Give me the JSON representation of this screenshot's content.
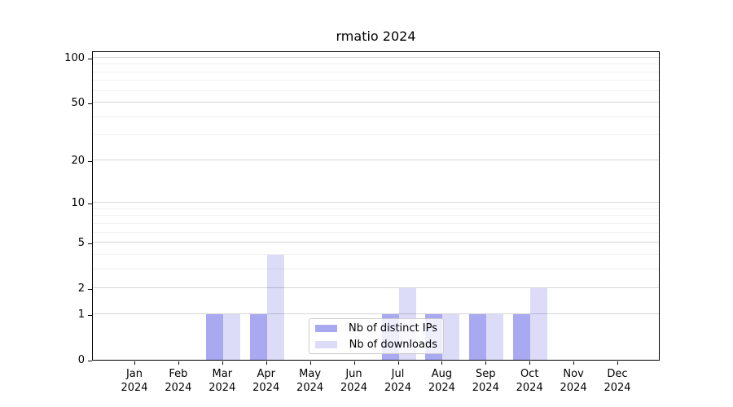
{
  "chart_data": {
    "type": "bar",
    "title": "rmatio 2024",
    "categories": [
      "Jan",
      "Feb",
      "Mar",
      "Apr",
      "May",
      "Jun",
      "Jul",
      "Aug",
      "Sep",
      "Oct",
      "Nov",
      "Dec"
    ],
    "category_year": "2024",
    "series": [
      {
        "name": "Nb of distinct IPs",
        "color": "#a9a9f2",
        "values": [
          0,
          0,
          1,
          1,
          0,
          0,
          1,
          1,
          1,
          1,
          0,
          0
        ]
      },
      {
        "name": "Nb of downloads",
        "color": "#dcdcf8",
        "values": [
          0,
          0,
          1,
          4,
          0,
          0,
          2,
          1,
          1,
          2,
          0,
          0
        ]
      }
    ],
    "xlabel": "",
    "ylabel": "",
    "yscale": "log1p",
    "ylim": [
      0,
      112
    ],
    "yticks_major": [
      0,
      1,
      2,
      5,
      10,
      20,
      50,
      100
    ],
    "yticks_minor": [
      3,
      4,
      6,
      7,
      8,
      9,
      30,
      40,
      60,
      70,
      80,
      90
    ],
    "grid": "horizontal",
    "legend_position": "lower-center-inside",
    "axis_color": "#000000",
    "grid_major_color": "#d6d6d6",
    "grid_minor_color": "#f1f1f1"
  }
}
